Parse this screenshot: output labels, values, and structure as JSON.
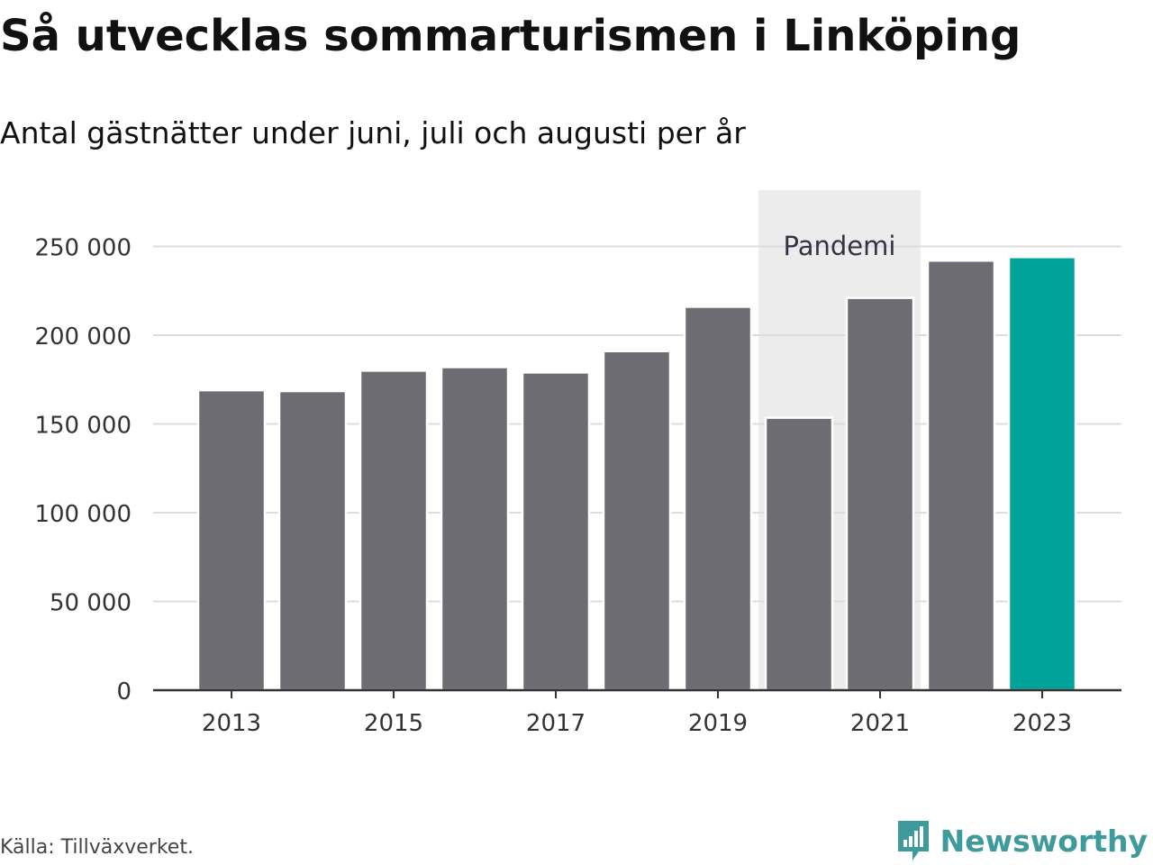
{
  "title": "Så utvecklas sommarturismen i Linköping",
  "subtitle": "Antal gästnätter under juni, juli och augusti per år",
  "source": "Källa: Tillväxverket.",
  "brand": {
    "name": "Newsworthy",
    "logo_icon": "bar-chart-speech-bubble-icon",
    "color": "#3f9a9c"
  },
  "colors": {
    "bar": "#6d6c72",
    "highlight": "#00a39a",
    "pandemic_band": "#ececec",
    "grid": "#dddddd",
    "axis": "#333333"
  },
  "chart_data": {
    "type": "bar",
    "categories": [
      "2013",
      "2014",
      "2015",
      "2016",
      "2017",
      "2018",
      "2019",
      "2020",
      "2021",
      "2022",
      "2023"
    ],
    "values": [
      169000,
      168500,
      180000,
      182000,
      179000,
      191000,
      216000,
      153500,
      221000,
      242000,
      244000
    ],
    "highlight_category": "2023",
    "x_tick_labels": [
      "2013",
      "2015",
      "2017",
      "2019",
      "2021",
      "2023"
    ],
    "y_ticks": [
      0,
      50000,
      100000,
      150000,
      200000,
      250000
    ],
    "y_tick_labels": [
      "0",
      "50 000",
      "100 000",
      "150 000",
      "200 000",
      "250 000"
    ],
    "ylim": [
      0,
      280000
    ],
    "grid": "horizontal",
    "xlabel": "",
    "ylabel": "",
    "annotation": {
      "label": "Pandemi",
      "from_category": "2020",
      "to_category": "2021"
    }
  }
}
